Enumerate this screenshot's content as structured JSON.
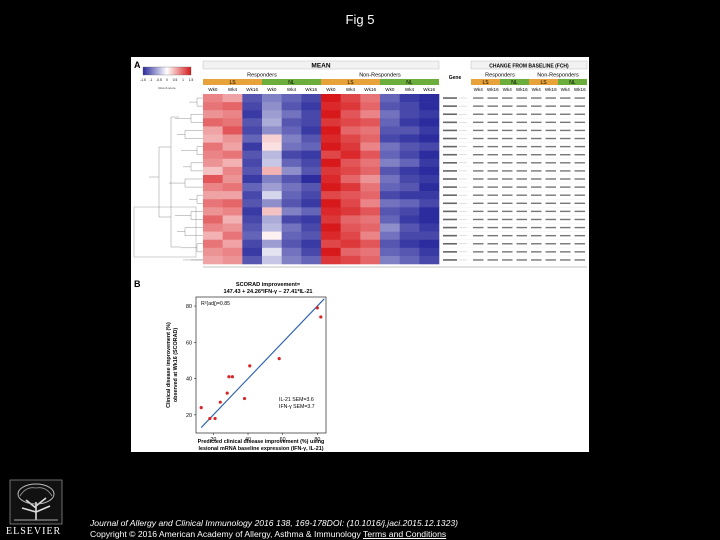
{
  "page": {
    "title": "Fig 5"
  },
  "panel_a": {
    "label": "A",
    "scale_ticks": [
      "-1.5",
      "-1",
      "-0.5",
      "0",
      "0.5",
      "1",
      "1.5"
    ],
    "scale_caption": "Row Z-score",
    "mean_header": "MEAN",
    "change_header": "CHANGE FROM BASELINE (FCH)",
    "gene_header": "Gene",
    "groups": [
      "Responders",
      "Non-Responders"
    ],
    "subgroups": [
      "LS",
      "NL"
    ],
    "weeks_mean": [
      "Wk0",
      "Wk4",
      "Wk16",
      "Wk0",
      "Wk4",
      "Wk16",
      "Wk0",
      "Wk4",
      "Wk16",
      "Wk0",
      "Wk4",
      "Wk16"
    ],
    "weeks_change": [
      "Wk4",
      "Wk16",
      "Wk4",
      "Wk16",
      "Wk4",
      "Wk16",
      "Wk4",
      "Wk16"
    ],
    "colors": {
      "ls": "#e8a23a",
      "nl": "#6cae3c",
      "high": "#d7191c",
      "low": "#2c2c9e",
      "mid": "#ffffff"
    },
    "heatmap_rows": [
      [
        0.8,
        0.6,
        -1.2,
        -0.9,
        -1.1,
        -1.3,
        1.5,
        1.2,
        0.9,
        -1.1,
        -1.4,
        -1.5
      ],
      [
        0.9,
        1.0,
        -1.3,
        -0.8,
        -1.2,
        -1.4,
        1.4,
        1.3,
        1.0,
        -1.2,
        -1.3,
        -1.5
      ],
      [
        0.7,
        0.8,
        -1.4,
        -0.7,
        -1.0,
        -1.3,
        1.5,
        1.1,
        0.8,
        -1.0,
        -1.3,
        -1.4
      ],
      [
        1.0,
        0.9,
        -1.2,
        -0.6,
        -1.2,
        -1.3,
        1.3,
        1.2,
        1.1,
        -1.1,
        -1.4,
        -1.5
      ],
      [
        0.6,
        1.1,
        -1.3,
        -0.8,
        -1.1,
        -1.4,
        1.5,
        1.0,
        0.9,
        -1.2,
        -1.2,
        -1.4
      ],
      [
        0.5,
        0.7,
        -1.1,
        0.3,
        -0.9,
        -1.2,
        1.4,
        1.2,
        1.0,
        -1.3,
        -1.4,
        -1.5
      ],
      [
        0.9,
        0.6,
        -1.4,
        0.2,
        -1.0,
        -1.1,
        1.5,
        1.3,
        0.8,
        -1.0,
        -1.2,
        -1.3
      ],
      [
        0.8,
        0.9,
        -1.2,
        -0.5,
        -1.3,
        -1.4,
        1.2,
        1.4,
        1.1,
        -1.1,
        -1.3,
        -1.5
      ],
      [
        0.7,
        0.5,
        -1.3,
        -0.4,
        -1.1,
        -1.3,
        1.5,
        1.1,
        0.9,
        -0.9,
        -1.1,
        -1.4
      ],
      [
        0.4,
        0.8,
        -1.2,
        0.5,
        -0.8,
        -1.2,
        1.3,
        1.2,
        1.0,
        -1.2,
        -1.4,
        -1.5
      ],
      [
        1.1,
        0.7,
        -1.4,
        -0.9,
        -1.2,
        -1.5,
        1.4,
        1.0,
        0.7,
        -1.0,
        -1.3,
        -1.4
      ],
      [
        0.8,
        0.9,
        -1.1,
        -0.7,
        -1.0,
        -1.2,
        1.5,
        1.3,
        0.9,
        -1.1,
        -1.2,
        -1.5
      ],
      [
        0.6,
        0.6,
        -1.3,
        -0.3,
        -1.1,
        -1.3,
        1.2,
        1.1,
        1.0,
        -1.3,
        -1.4,
        -1.4
      ],
      [
        0.9,
        1.0,
        -1.2,
        -0.8,
        -1.2,
        -1.4,
        1.5,
        1.2,
        0.8,
        -1.0,
        -1.1,
        -1.3
      ],
      [
        0.7,
        0.8,
        -1.4,
        0.4,
        -0.9,
        -1.1,
        1.4,
        1.3,
        1.1,
        -1.2,
        -1.3,
        -1.5
      ],
      [
        1.0,
        0.5,
        -1.3,
        -0.6,
        -1.3,
        -1.4,
        1.3,
        1.0,
        0.9,
        -1.1,
        -1.4,
        -1.5
      ],
      [
        0.8,
        0.7,
        -1.2,
        -0.5,
        -1.0,
        -1.3,
        1.5,
        1.1,
        1.0,
        -0.8,
        -1.2,
        -1.4
      ],
      [
        0.5,
        0.9,
        -1.1,
        0.1,
        -1.1,
        -1.2,
        1.4,
        1.2,
        0.8,
        -1.0,
        -1.3,
        -1.3
      ],
      [
        0.9,
        0.6,
        -1.3,
        -0.7,
        -1.2,
        -1.4,
        1.2,
        1.3,
        1.1,
        -1.2,
        -1.4,
        -1.5
      ],
      [
        0.7,
        0.8,
        -1.4,
        -0.2,
        -1.0,
        -1.3,
        1.5,
        1.0,
        0.9,
        -1.1,
        -1.2,
        -1.4
      ],
      [
        0.6,
        0.7,
        -1.2,
        -0.4,
        -0.9,
        -1.1,
        1.3,
        1.2,
        1.0,
        -0.9,
        -1.1,
        -1.3
      ]
    ]
  },
  "panel_b": {
    "label": "B",
    "formula_line1": "SCORAD improvement=",
    "formula_line2": "147.43 + 24.26*IFN-γ – 27.41*IL-21",
    "r2": "R²(adj)=0.85",
    "sem1": "IL-21 SEM=3.6",
    "sem2": "IFN-γ SEM=3.7",
    "ylabel_line1": "Clinical disease improvement (%)",
    "ylabel_line2": "observed at Wk16 (SCORAD)",
    "xlabel_line1": "Predicted clinical disease improvement (%) using",
    "xlabel_line2": "lesional mRNA baseline expression (IFN-γ, IL-21)"
  },
  "chart_data": {
    "type": "scatter",
    "x": [
      13,
      18,
      21,
      24,
      28,
      29,
      31,
      38,
      41,
      58,
      80,
      82
    ],
    "y": [
      24,
      18,
      18,
      27,
      32,
      41,
      41,
      29,
      47,
      51,
      79,
      74
    ],
    "xticks": [
      20,
      40,
      60,
      80
    ],
    "yticks": [
      20,
      40,
      60,
      80
    ],
    "xlim": [
      10,
      85
    ],
    "ylim": [
      10,
      85
    ],
    "fit_line": {
      "x": [
        13,
        84
      ],
      "y": [
        13,
        84
      ]
    },
    "point_color": "#d62728",
    "line_color": "#2a5fb0"
  },
  "footer": {
    "publisher": "ELSEVIER",
    "citation": "Journal of Allergy and Clinical Immunology 2016 138, 169-178DOI: (10.1016/j.jaci.2015.12.1323)",
    "copyright": "Copyright © 2016 American Academy of Allergy, Asthma & Immunology ",
    "terms": "Terms and Conditions"
  }
}
